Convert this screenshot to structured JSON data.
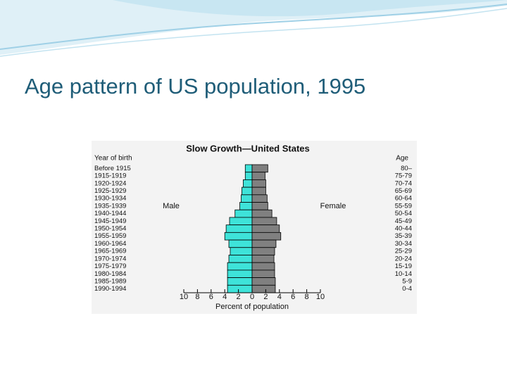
{
  "slide_title": "Age pattern of US population, 1995",
  "chart_data": {
    "type": "pyramid",
    "title": "Slow Growth—United States",
    "left_header": "Year of birth",
    "right_header": "Age",
    "categories": [
      "80–",
      "75-79",
      "70-74",
      "65-69",
      "60-64",
      "55-59",
      "50-54",
      "45-49",
      "40-44",
      "35-39",
      "30-34",
      "25-29",
      "20-24",
      "15-19",
      "10-14",
      "5-9",
      "0-4"
    ],
    "birth_years": [
      "Before 1915",
      "1915-1919",
      "1920-1924",
      "1925-1929",
      "1930-1934",
      "1935-1939",
      "1940-1944",
      "1945-1949",
      "1950-1954",
      "1955-1959",
      "1960-1964",
      "1965-1969",
      "1970-1974",
      "1975-1979",
      "1980-1984",
      "1985-1989",
      "1990-1994"
    ],
    "series": [
      {
        "name": "Male",
        "color": "#3ee3d9",
        "values": [
          1.0,
          1.0,
          1.3,
          1.5,
          1.6,
          1.8,
          2.5,
          3.3,
          3.8,
          4.0,
          3.4,
          3.2,
          3.4,
          3.6,
          3.6,
          3.6,
          3.6
        ]
      },
      {
        "name": "Female",
        "color": "#808080",
        "values": [
          2.3,
          1.9,
          2.0,
          2.0,
          2.2,
          2.3,
          2.9,
          3.6,
          4.0,
          4.2,
          3.5,
          3.3,
          3.2,
          3.3,
          3.3,
          3.4,
          3.4
        ]
      }
    ],
    "xlabel": "Percent of population",
    "xlim": [
      0,
      10
    ],
    "xticks": [
      0,
      2,
      4,
      6,
      8,
      10
    ]
  }
}
